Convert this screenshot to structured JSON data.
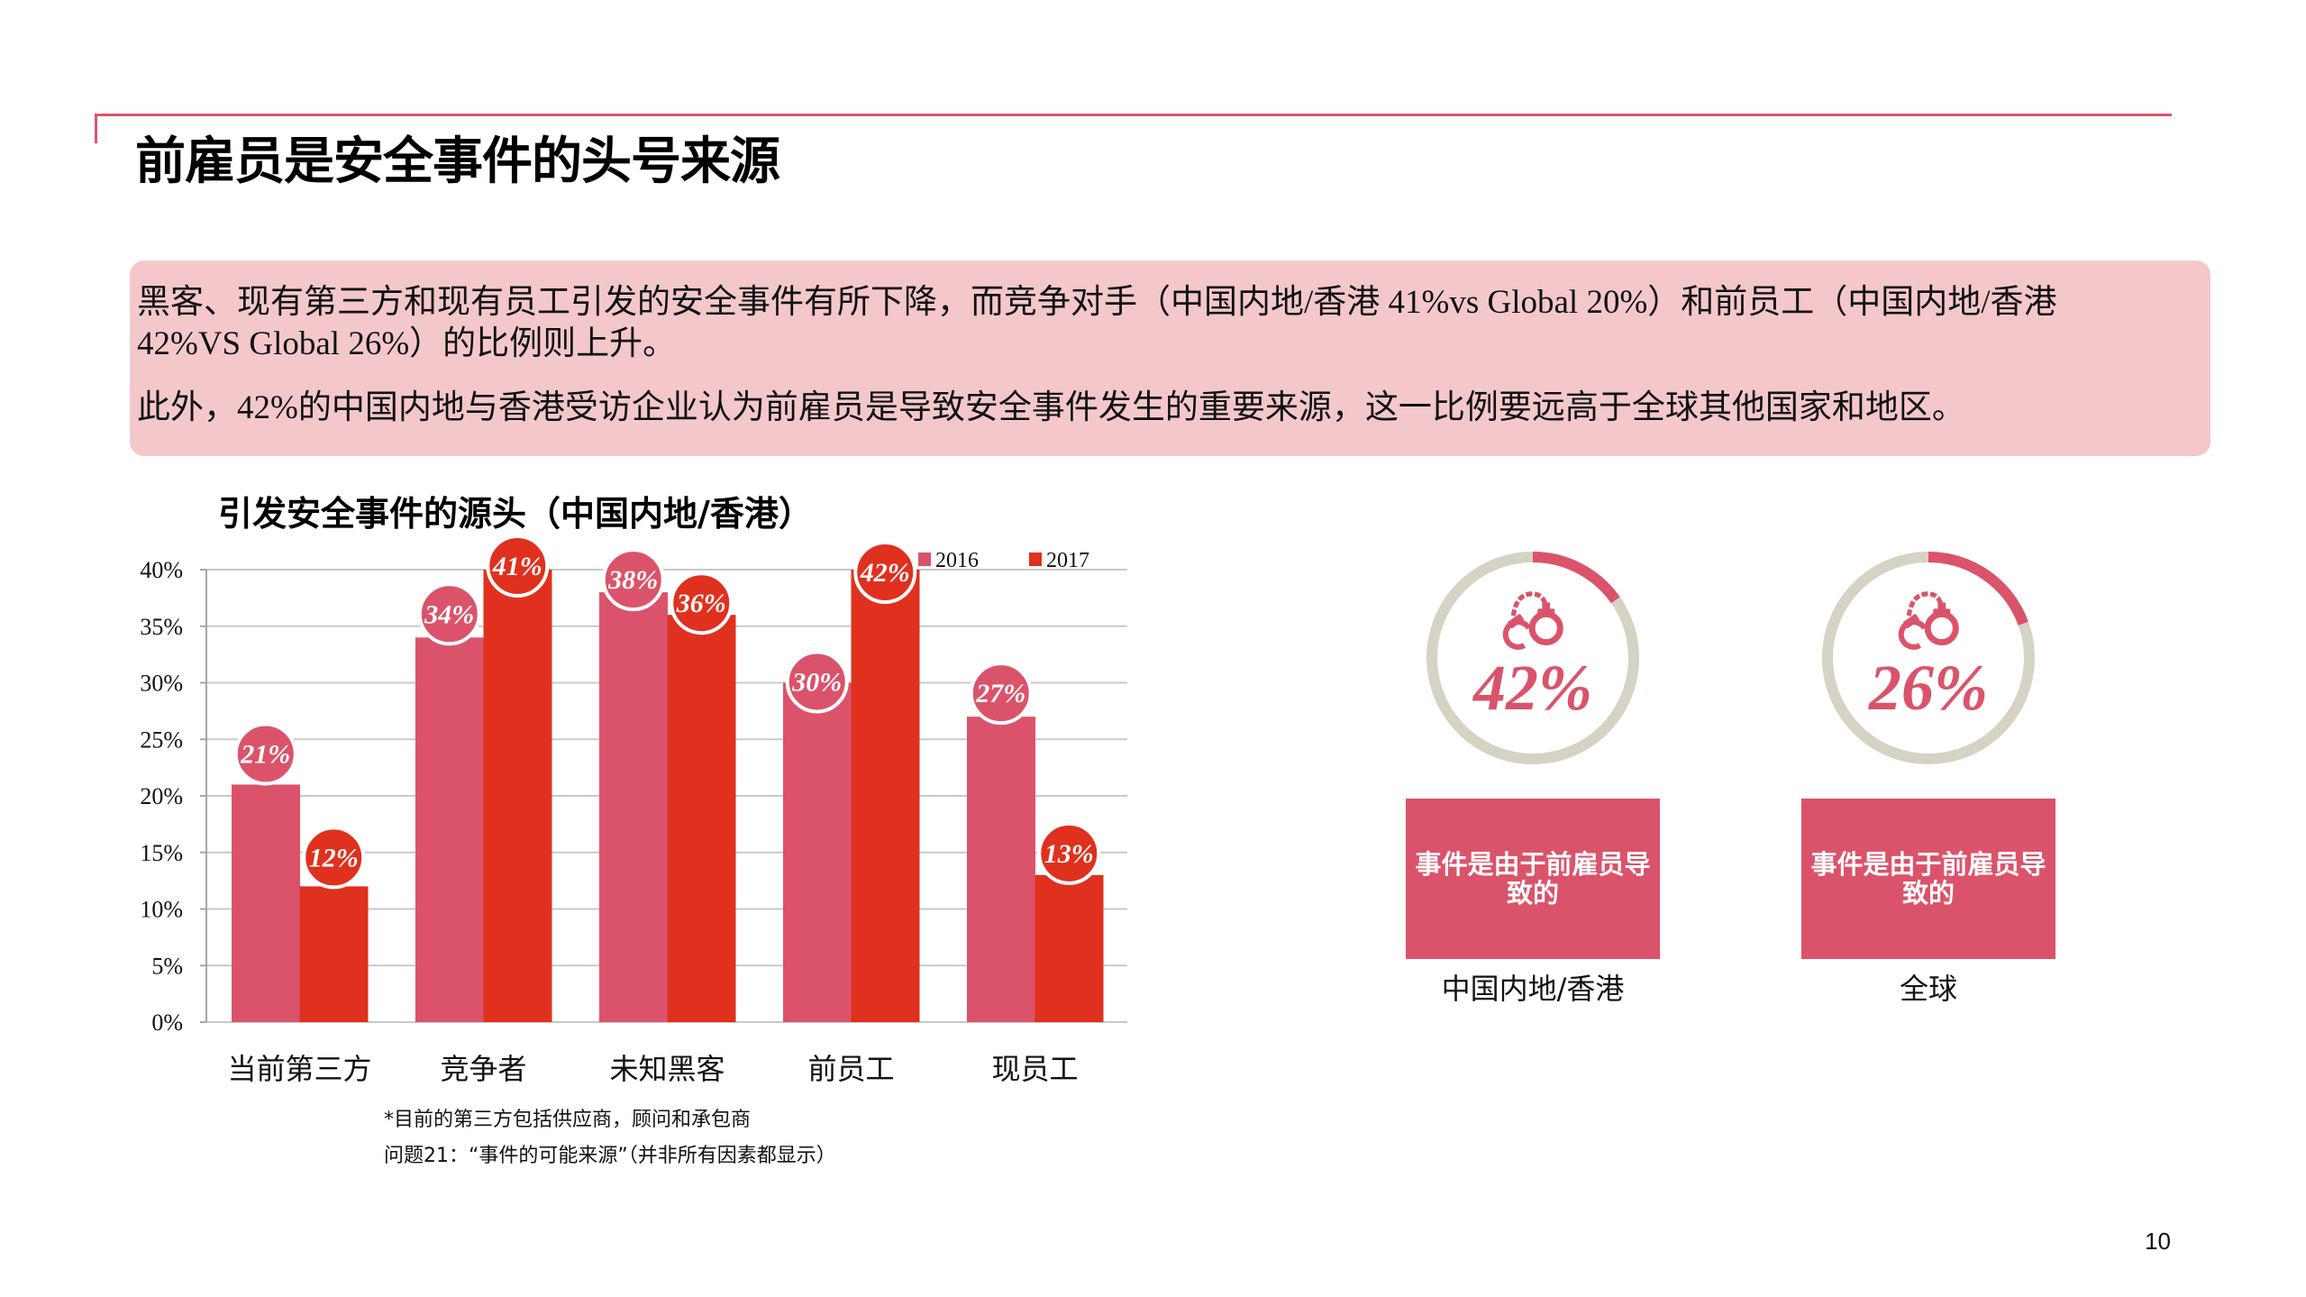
{
  "page": {
    "title": "前雇员是安全事件的头号来源",
    "page_number": "10"
  },
  "colors": {
    "accent_rose": "#db536a",
    "accent_red": "#e0301e",
    "ring_gray": "#d6d2c4",
    "summary_bg": "#f4c8cb"
  },
  "summary": {
    "paragraph1_lines": [
      "黑客、现有第三方和现有员工引发的安全事件有所下降，而竞争对手（中国内地/香港 41%vs Global 20%）和前员工（中国内地/香港",
      "42%VS Global 26%）的比例则上升。"
    ],
    "paragraph2": "此外，42%的中国内地与香港受访企业认为前雇员是导致安全事件发生的重要来源，这一比例要远高于全球其他国家和地区。"
  },
  "chart_data": {
    "type": "bar",
    "title": "引发安全事件的源头（中国内地/香港）",
    "xlabel": "",
    "ylabel": "",
    "categories": [
      "当前第三方",
      "竞争者",
      "未知黑客",
      "前员工",
      "现员工"
    ],
    "series": [
      {
        "name": "2016",
        "color": "#db536a",
        "values": [
          21,
          34,
          38,
          30,
          27
        ]
      },
      {
        "name": "2017",
        "color": "#e0301e",
        "values": [
          12,
          41,
          36,
          42,
          13
        ]
      }
    ],
    "data_labels": [
      [
        "21%",
        "34%",
        "38%",
        "30%",
        "27%"
      ],
      [
        "12%",
        "41%",
        "36%",
        "42%",
        "13%"
      ]
    ],
    "ytick_values": [
      0,
      5,
      10,
      15,
      20,
      25,
      30,
      35,
      40
    ],
    "yticks": [
      "0%",
      "5%",
      "10%",
      "15%",
      "20%",
      "25%",
      "30%",
      "35%",
      "40%"
    ],
    "ylim": [
      0,
      40
    ],
    "grid": true,
    "legend_position": "top-right",
    "legend": [
      "2016",
      "2017"
    ]
  },
  "footnotes": [
    "*目前的第三方包括供应商，顾问和承包商",
    "问题21：“事件的可能来源”（并非所有因素都显示）"
  ],
  "stats": [
    {
      "icon": "handcuffs-icon",
      "value": "42%",
      "caption": "事件是由于前雇员导致的",
      "region": "中国内地/香港",
      "ring_arc_degrees": 55
    },
    {
      "icon": "handcuffs-icon",
      "value": "26%",
      "caption": "事件是由于前雇员导致的",
      "region": "全球",
      "ring_arc_degrees": 70
    }
  ]
}
